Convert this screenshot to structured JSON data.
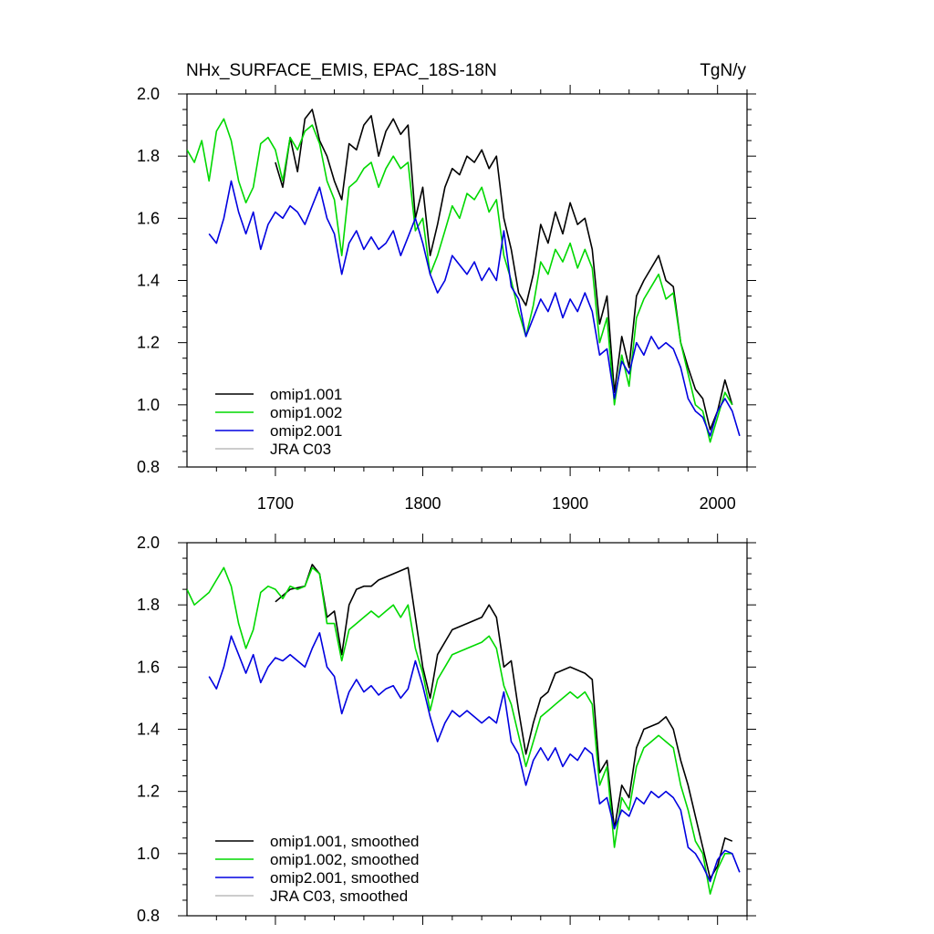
{
  "chart_data": [
    {
      "type": "line",
      "title": "NHx_SURFACE_EMIS, EPAC_18S-18N",
      "units": "TgN/y",
      "xlim": [
        1640,
        2020
      ],
      "ylim": [
        0.8,
        2.0
      ],
      "xticks": [
        1700,
        1800,
        1900,
        2000
      ],
      "yticks": [
        0.8,
        1.0,
        1.2,
        1.4,
        1.6,
        1.8,
        2.0
      ],
      "yticklabels": [
        "0.8",
        "1.0",
        "1.2",
        "1.4",
        "1.6",
        "1.8",
        "2.0"
      ],
      "legend_position": "bottom-left",
      "series": [
        {
          "name": "omip1.001",
          "color": "#000000",
          "x": [
            1700,
            1705,
            1710,
            1715,
            1720,
            1725,
            1730,
            1735,
            1740,
            1745,
            1750,
            1755,
            1760,
            1765,
            1770,
            1775,
            1780,
            1785,
            1790,
            1795,
            1800,
            1805,
            1810,
            1815,
            1820,
            1825,
            1830,
            1835,
            1840,
            1845,
            1850,
            1855,
            1860,
            1865,
            1870,
            1875,
            1880,
            1885,
            1890,
            1895,
            1900,
            1905,
            1910,
            1915,
            1920,
            1925,
            1930,
            1935,
            1940,
            1945,
            1950,
            1955,
            1960,
            1965,
            1970,
            1975,
            1980,
            1985,
            1990,
            1995,
            2000,
            2005,
            2010
          ],
          "y": [
            1.78,
            1.7,
            1.86,
            1.75,
            1.92,
            1.95,
            1.85,
            1.8,
            1.72,
            1.66,
            1.84,
            1.82,
            1.9,
            1.93,
            1.8,
            1.88,
            1.92,
            1.87,
            1.9,
            1.6,
            1.7,
            1.48,
            1.58,
            1.7,
            1.76,
            1.74,
            1.8,
            1.78,
            1.82,
            1.76,
            1.8,
            1.6,
            1.5,
            1.36,
            1.32,
            1.42,
            1.58,
            1.52,
            1.62,
            1.55,
            1.65,
            1.58,
            1.6,
            1.5,
            1.26,
            1.35,
            1.04,
            1.22,
            1.12,
            1.35,
            1.4,
            1.44,
            1.48,
            1.4,
            1.38,
            1.2,
            1.12,
            1.05,
            1.02,
            0.92,
            0.98,
            1.08,
            1.0
          ]
        },
        {
          "name": "omip1.002",
          "color": "#00d800",
          "x": [
            1640,
            1645,
            1650,
            1655,
            1660,
            1665,
            1670,
            1675,
            1680,
            1685,
            1690,
            1695,
            1700,
            1705,
            1710,
            1715,
            1720,
            1725,
            1730,
            1735,
            1740,
            1745,
            1750,
            1755,
            1760,
            1765,
            1770,
            1775,
            1780,
            1785,
            1790,
            1795,
            1800,
            1805,
            1810,
            1815,
            1820,
            1825,
            1830,
            1835,
            1840,
            1845,
            1850,
            1855,
            1860,
            1865,
            1870,
            1875,
            1880,
            1885,
            1890,
            1895,
            1900,
            1905,
            1910,
            1915,
            1920,
            1925,
            1930,
            1935,
            1940,
            1945,
            1950,
            1955,
            1960,
            1965,
            1970,
            1975,
            1980,
            1985,
            1990,
            1995,
            2000,
            2005,
            2010
          ],
          "y": [
            1.82,
            1.78,
            1.85,
            1.72,
            1.88,
            1.92,
            1.85,
            1.72,
            1.65,
            1.7,
            1.84,
            1.86,
            1.82,
            1.72,
            1.86,
            1.82,
            1.88,
            1.9,
            1.84,
            1.72,
            1.66,
            1.48,
            1.7,
            1.72,
            1.76,
            1.78,
            1.7,
            1.76,
            1.8,
            1.76,
            1.78,
            1.56,
            1.6,
            1.42,
            1.48,
            1.56,
            1.64,
            1.6,
            1.68,
            1.66,
            1.7,
            1.62,
            1.66,
            1.48,
            1.4,
            1.3,
            1.22,
            1.32,
            1.46,
            1.42,
            1.5,
            1.46,
            1.52,
            1.44,
            1.5,
            1.44,
            1.2,
            1.28,
            1.0,
            1.16,
            1.06,
            1.28,
            1.34,
            1.38,
            1.42,
            1.34,
            1.36,
            1.2,
            1.1,
            1.0,
            0.98,
            0.88,
            0.96,
            1.04,
            1.0
          ]
        },
        {
          "name": "omip2.001",
          "color": "#0000e0",
          "x": [
            1655,
            1660,
            1665,
            1670,
            1675,
            1680,
            1685,
            1690,
            1695,
            1700,
            1705,
            1710,
            1715,
            1720,
            1725,
            1730,
            1735,
            1740,
            1745,
            1750,
            1755,
            1760,
            1765,
            1770,
            1775,
            1780,
            1785,
            1790,
            1795,
            1800,
            1805,
            1810,
            1815,
            1820,
            1825,
            1830,
            1835,
            1840,
            1845,
            1850,
            1855,
            1860,
            1865,
            1870,
            1875,
            1880,
            1885,
            1890,
            1895,
            1900,
            1905,
            1910,
            1915,
            1920,
            1925,
            1930,
            1935,
            1940,
            1945,
            1950,
            1955,
            1960,
            1965,
            1970,
            1975,
            1980,
            1985,
            1990,
            1995,
            2000,
            2005,
            2010,
            2015
          ],
          "y": [
            1.55,
            1.52,
            1.6,
            1.72,
            1.62,
            1.55,
            1.62,
            1.5,
            1.58,
            1.62,
            1.6,
            1.64,
            1.62,
            1.58,
            1.64,
            1.7,
            1.6,
            1.55,
            1.42,
            1.52,
            1.56,
            1.5,
            1.54,
            1.5,
            1.52,
            1.56,
            1.48,
            1.54,
            1.6,
            1.52,
            1.42,
            1.36,
            1.4,
            1.48,
            1.45,
            1.42,
            1.46,
            1.4,
            1.44,
            1.4,
            1.56,
            1.38,
            1.34,
            1.22,
            1.28,
            1.34,
            1.3,
            1.36,
            1.28,
            1.34,
            1.3,
            1.36,
            1.3,
            1.16,
            1.18,
            1.02,
            1.14,
            1.1,
            1.2,
            1.16,
            1.22,
            1.18,
            1.2,
            1.18,
            1.12,
            1.02,
            0.98,
            0.96,
            0.9,
            0.98,
            1.02,
            0.98,
            0.9
          ]
        },
        {
          "name": "JRA C03",
          "color": "#bbbbbb",
          "x": [],
          "y": []
        }
      ]
    },
    {
      "type": "line",
      "xlim": [
        1640,
        2020
      ],
      "ylim": [
        0.8,
        2.0
      ],
      "yticks": [
        0.8,
        1.0,
        1.2,
        1.4,
        1.6,
        1.8,
        2.0
      ],
      "yticklabels": [
        "0.8",
        "1.0",
        "1.2",
        "1.4",
        "1.6",
        "1.8",
        "2.0"
      ],
      "legend_position": "bottom-left",
      "series": [
        {
          "name": "omip1.001, smoothed",
          "color": "#000000",
          "x": [
            1700,
            1710,
            1720,
            1725,
            1730,
            1735,
            1740,
            1745,
            1750,
            1755,
            1760,
            1765,
            1770,
            1780,
            1790,
            1795,
            1800,
            1805,
            1810,
            1820,
            1830,
            1840,
            1845,
            1850,
            1855,
            1860,
            1865,
            1870,
            1875,
            1880,
            1885,
            1890,
            1900,
            1910,
            1915,
            1920,
            1925,
            1930,
            1935,
            1940,
            1945,
            1950,
            1960,
            1965,
            1970,
            1975,
            1980,
            1985,
            1990,
            1995,
            2000,
            2005,
            2010
          ],
          "y": [
            1.81,
            1.85,
            1.86,
            1.93,
            1.9,
            1.76,
            1.78,
            1.64,
            1.8,
            1.85,
            1.86,
            1.86,
            1.88,
            1.9,
            1.92,
            1.76,
            1.6,
            1.5,
            1.64,
            1.72,
            1.74,
            1.76,
            1.8,
            1.76,
            1.6,
            1.62,
            1.46,
            1.32,
            1.42,
            1.5,
            1.52,
            1.58,
            1.6,
            1.58,
            1.56,
            1.26,
            1.3,
            1.08,
            1.22,
            1.18,
            1.34,
            1.4,
            1.42,
            1.44,
            1.4,
            1.3,
            1.22,
            1.12,
            1.02,
            0.92,
            0.96,
            1.05,
            1.04
          ]
        },
        {
          "name": "omip1.002, smoothed",
          "color": "#00d800",
          "x": [
            1640,
            1645,
            1650,
            1655,
            1660,
            1665,
            1670,
            1675,
            1680,
            1685,
            1690,
            1695,
            1700,
            1705,
            1710,
            1715,
            1720,
            1725,
            1730,
            1735,
            1740,
            1745,
            1750,
            1755,
            1760,
            1765,
            1770,
            1775,
            1780,
            1785,
            1790,
            1795,
            1800,
            1805,
            1810,
            1815,
            1820,
            1830,
            1840,
            1845,
            1850,
            1855,
            1860,
            1865,
            1870,
            1875,
            1880,
            1885,
            1890,
            1895,
            1900,
            1905,
            1910,
            1915,
            1920,
            1925,
            1930,
            1935,
            1940,
            1945,
            1950,
            1955,
            1960,
            1965,
            1970,
            1975,
            1980,
            1985,
            1990,
            1995,
            2000,
            2005,
            2010
          ],
          "y": [
            1.85,
            1.8,
            1.82,
            1.84,
            1.88,
            1.92,
            1.86,
            1.74,
            1.66,
            1.72,
            1.84,
            1.86,
            1.85,
            1.82,
            1.86,
            1.85,
            1.86,
            1.92,
            1.9,
            1.74,
            1.74,
            1.62,
            1.72,
            1.74,
            1.76,
            1.78,
            1.76,
            1.78,
            1.8,
            1.76,
            1.8,
            1.66,
            1.58,
            1.46,
            1.56,
            1.6,
            1.64,
            1.66,
            1.68,
            1.7,
            1.66,
            1.54,
            1.48,
            1.38,
            1.28,
            1.36,
            1.44,
            1.46,
            1.48,
            1.5,
            1.52,
            1.5,
            1.52,
            1.48,
            1.22,
            1.28,
            1.02,
            1.18,
            1.14,
            1.28,
            1.34,
            1.36,
            1.38,
            1.36,
            1.34,
            1.22,
            1.14,
            1.04,
            1.0,
            0.87,
            0.95,
            1.0,
            1.0
          ]
        },
        {
          "name": "omip2.001, smoothed",
          "color": "#0000e0",
          "x": [
            1655,
            1660,
            1665,
            1670,
            1675,
            1680,
            1685,
            1690,
            1695,
            1700,
            1705,
            1710,
            1715,
            1720,
            1725,
            1730,
            1735,
            1740,
            1745,
            1750,
            1755,
            1760,
            1765,
            1770,
            1775,
            1780,
            1785,
            1790,
            1795,
            1800,
            1805,
            1810,
            1815,
            1820,
            1825,
            1830,
            1835,
            1840,
            1845,
            1850,
            1855,
            1860,
            1865,
            1870,
            1875,
            1880,
            1885,
            1890,
            1895,
            1900,
            1905,
            1910,
            1915,
            1920,
            1925,
            1930,
            1935,
            1940,
            1945,
            1950,
            1955,
            1960,
            1965,
            1970,
            1975,
            1980,
            1985,
            1990,
            1995,
            2000,
            2005,
            2010,
            2015
          ],
          "y": [
            1.57,
            1.53,
            1.6,
            1.7,
            1.64,
            1.58,
            1.64,
            1.55,
            1.6,
            1.63,
            1.62,
            1.64,
            1.62,
            1.6,
            1.66,
            1.71,
            1.6,
            1.57,
            1.45,
            1.52,
            1.56,
            1.52,
            1.54,
            1.51,
            1.53,
            1.54,
            1.5,
            1.53,
            1.62,
            1.54,
            1.44,
            1.36,
            1.42,
            1.46,
            1.44,
            1.46,
            1.44,
            1.42,
            1.44,
            1.42,
            1.52,
            1.36,
            1.32,
            1.22,
            1.3,
            1.34,
            1.3,
            1.34,
            1.28,
            1.32,
            1.3,
            1.34,
            1.32,
            1.16,
            1.18,
            1.08,
            1.14,
            1.12,
            1.18,
            1.16,
            1.2,
            1.18,
            1.2,
            1.18,
            1.14,
            1.02,
            1.0,
            0.96,
            0.91,
            0.98,
            1.01,
            1.0,
            0.94
          ]
        },
        {
          "name": "JRA C03, smoothed",
          "color": "#bbbbbb",
          "x": [],
          "y": []
        }
      ]
    }
  ]
}
